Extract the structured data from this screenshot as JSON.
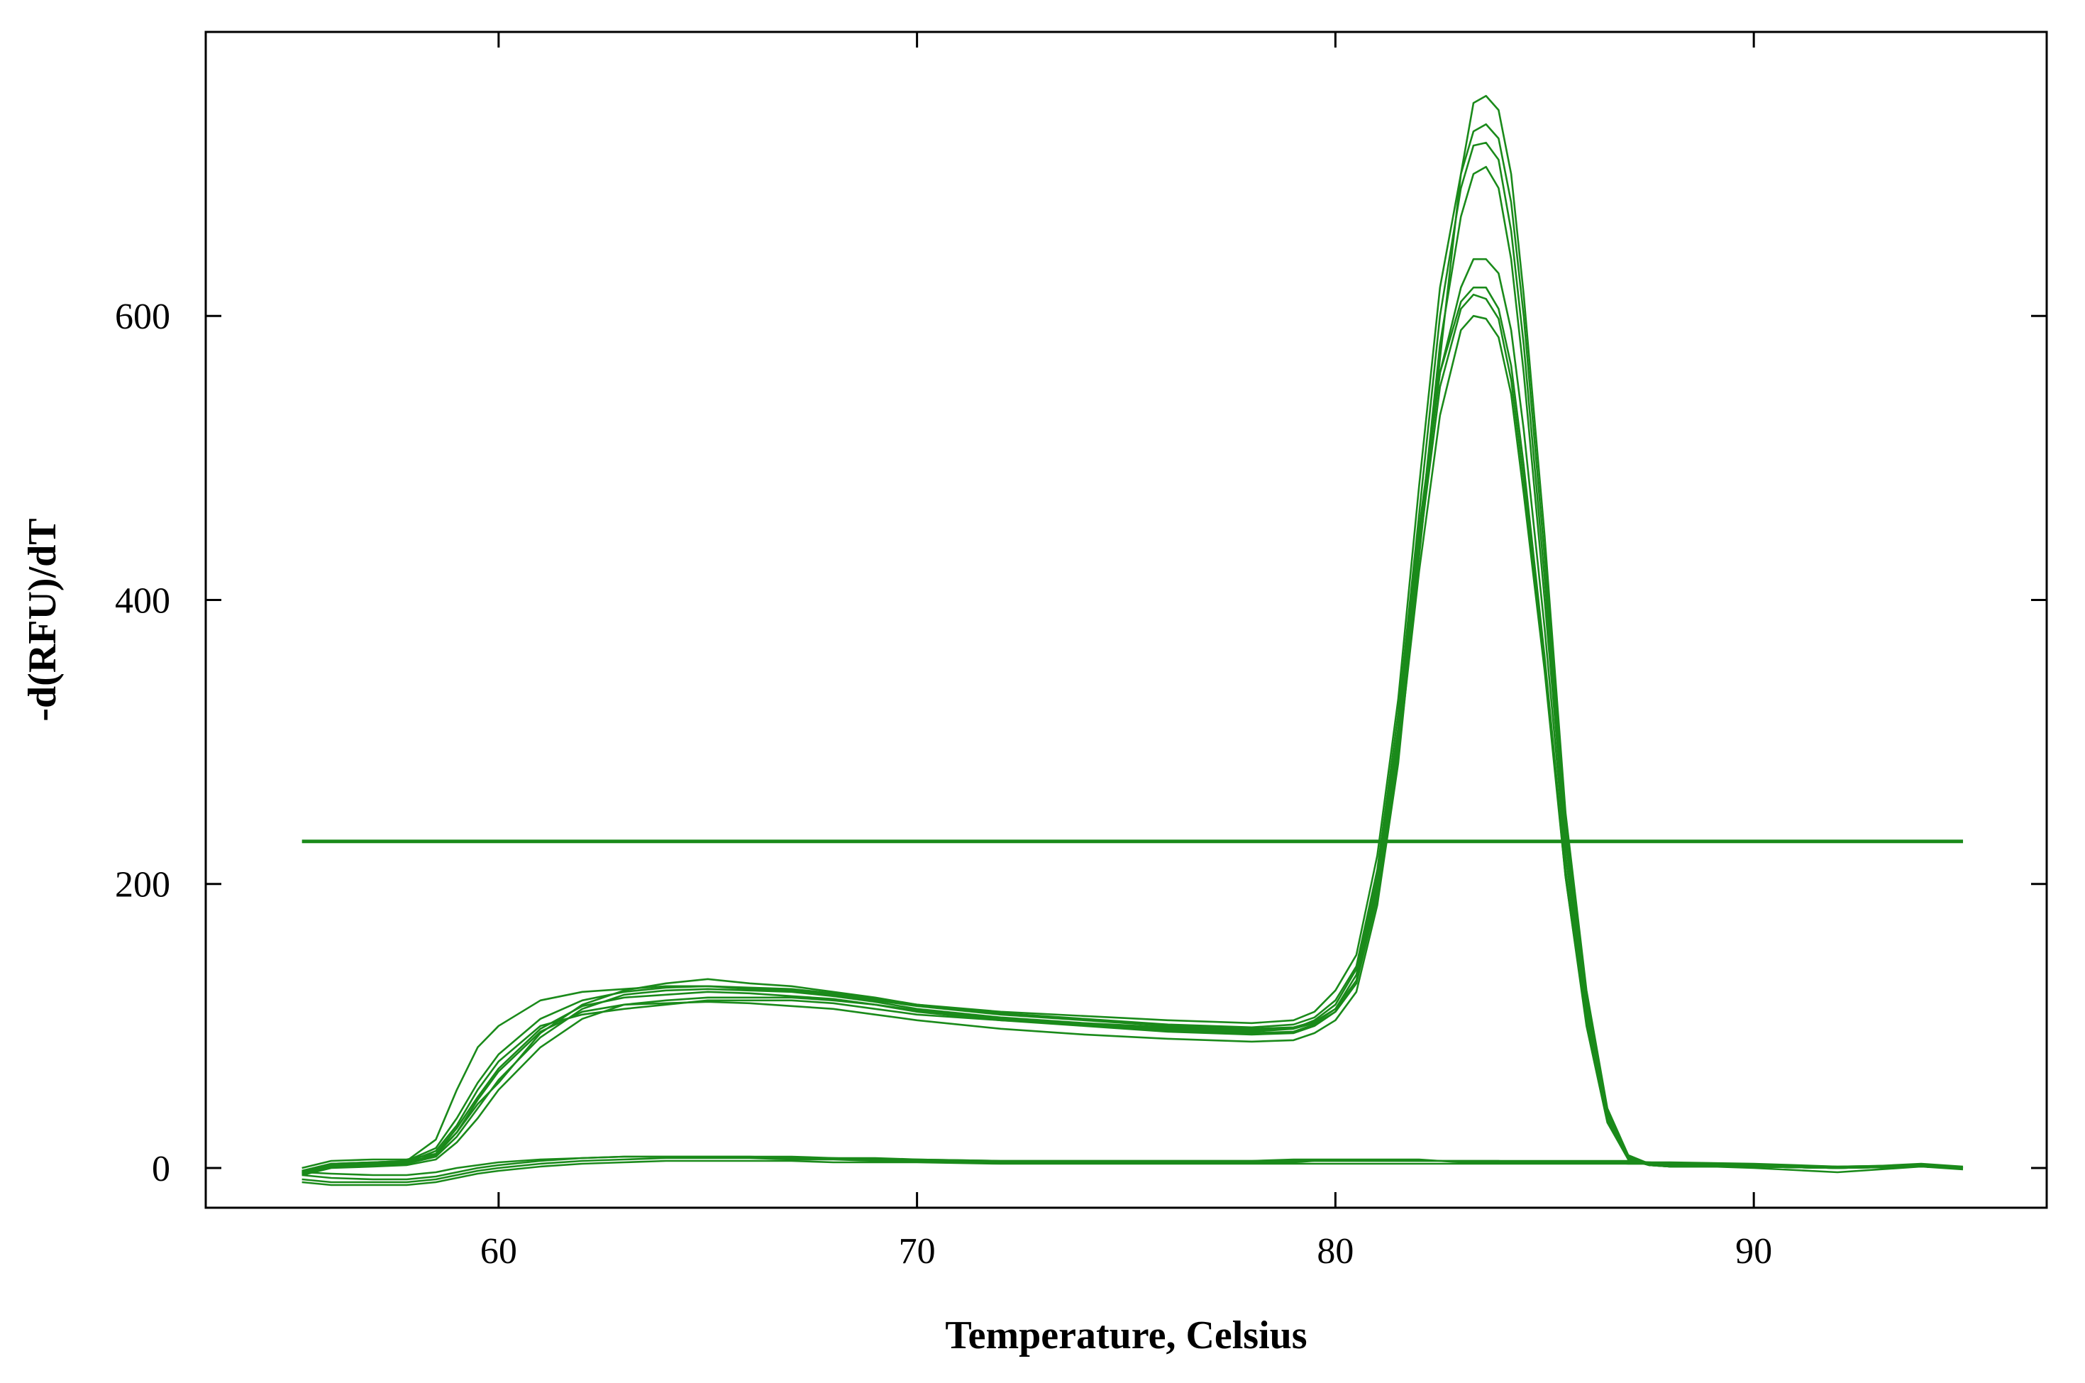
{
  "chart_data": {
    "type": "line",
    "title": "",
    "xlabel": "Temperature, Celsius",
    "ylabel": "-d(RFU)/dT",
    "xlim": [
      53,
      97
    ],
    "ylim": [
      -28,
      800
    ],
    "xticks": [
      60,
      70,
      80,
      90
    ],
    "xtick_labels": [
      "60",
      "70",
      "80",
      "90"
    ],
    "yticks": [
      0,
      200,
      400,
      600
    ],
    "ytick_labels": [
      "0",
      "200",
      "400",
      "600"
    ],
    "grid": false,
    "legend": "none",
    "line_color": "#1a8a1a",
    "threshold": {
      "value": 230,
      "x_start": 55.3,
      "x_end": 95
    },
    "series": [
      {
        "x": [
          55.3,
          56,
          57,
          57.8,
          58.5,
          59,
          59.5,
          60,
          61,
          62,
          63,
          64,
          65,
          66,
          67,
          68,
          69,
          70,
          72,
          74,
          76,
          78,
          79,
          79.5,
          80,
          80.5,
          81,
          81.5,
          82,
          82.5,
          83,
          83.3,
          83.6,
          83.9,
          84.2,
          84.5,
          85,
          85.5,
          86,
          86.5,
          87,
          87.5,
          88,
          90,
          92,
          94,
          95
        ],
        "y": [
          0,
          5,
          6,
          6,
          10,
          25,
          45,
          60,
          95,
          115,
          125,
          130,
          133,
          130,
          128,
          124,
          120,
          115,
          110,
          107,
          104,
          102,
          104,
          110,
          125,
          150,
          220,
          330,
          480,
          620,
          700,
          730,
          735,
          725,
          680,
          600,
          430,
          240,
          120,
          40,
          8,
          3,
          2,
          1,
          0,
          1,
          0
        ]
      },
      {
        "x": [
          55.3,
          56,
          57,
          57.8,
          58.5,
          59,
          59.5,
          60,
          61,
          62,
          63,
          64,
          65,
          66,
          67,
          68,
          69,
          70,
          72,
          74,
          76,
          78,
          79,
          79.5,
          80,
          80.5,
          81,
          81.5,
          82,
          82.5,
          83,
          83.3,
          83.6,
          83.9,
          84.2,
          84.5,
          85,
          85.5,
          86,
          86.5,
          87,
          87.5,
          88,
          90,
          92,
          94,
          95
        ],
        "y": [
          -3,
          2,
          3,
          4,
          12,
          30,
          55,
          75,
          100,
          108,
          112,
          115,
          118,
          118,
          118,
          116,
          112,
          108,
          104,
          101,
          98,
          96,
          98,
          104,
          115,
          140,
          205,
          310,
          450,
          560,
          620,
          640,
          640,
          630,
          590,
          520,
          380,
          220,
          110,
          35,
          7,
          2,
          1,
          1,
          0,
          1,
          0
        ]
      },
      {
        "x": [
          55.3,
          56,
          57,
          57.8,
          58.5,
          59,
          59.5,
          60,
          61,
          62,
          63,
          64,
          65,
          66,
          67,
          68,
          69,
          70,
          72,
          74,
          76,
          78,
          79,
          79.5,
          80,
          80.5,
          81,
          81.5,
          82,
          82.5,
          83,
          83.3,
          83.6,
          83.9,
          84.2,
          84.5,
          85,
          85.5,
          86,
          86.5,
          87,
          87.5,
          88,
          90,
          92,
          94,
          95
        ],
        "y": [
          -2,
          3,
          4,
          5,
          20,
          55,
          85,
          100,
          118,
          124,
          126,
          128,
          128,
          126,
          125,
          122,
          118,
          114,
          108,
          104,
          100,
          98,
          99,
          103,
          112,
          132,
          195,
          300,
          440,
          580,
          670,
          700,
          705,
          690,
          640,
          560,
          400,
          230,
          115,
          38,
          8,
          3,
          2,
          1,
          0,
          1,
          0
        ]
      },
      {
        "x": [
          55.3,
          56,
          57,
          57.8,
          58.5,
          59,
          59.5,
          60,
          61,
          62,
          63,
          64,
          65,
          66,
          67,
          68,
          69,
          70,
          72,
          74,
          76,
          78,
          79,
          79.5,
          80,
          80.5,
          81,
          81.5,
          82,
          82.5,
          83,
          83.3,
          83.6,
          83.9,
          84.2,
          84.5,
          85,
          85.5,
          86,
          86.5,
          87,
          87.5,
          88,
          90,
          92,
          94,
          95
        ],
        "y": [
          -5,
          0,
          1,
          2,
          6,
          18,
          35,
          55,
          85,
          105,
          115,
          118,
          120,
          120,
          120,
          118,
          115,
          110,
          104,
          100,
          96,
          94,
          95,
          100,
          110,
          130,
          190,
          290,
          420,
          530,
          590,
          600,
          598,
          585,
          545,
          475,
          350,
          205,
          100,
          32,
          6,
          2,
          1,
          1,
          0,
          1,
          0
        ]
      },
      {
        "x": [
          55.3,
          56,
          57,
          57.8,
          58.5,
          59,
          59.5,
          60,
          61,
          62,
          63,
          64,
          65,
          66,
          67,
          68,
          69,
          70,
          72,
          74,
          76,
          78,
          79,
          79.5,
          80,
          80.5,
          81,
          81.5,
          82,
          82.5,
          83,
          83.3,
          83.6,
          83.9,
          84.2,
          84.5,
          85,
          85.5,
          86,
          86.5,
          87,
          87.5,
          88,
          90,
          92,
          94,
          95
        ],
        "y": [
          -4,
          1,
          2,
          3,
          8,
          22,
          42,
          62,
          92,
          112,
          122,
          125,
          126,
          125,
          124,
          121,
          117,
          112,
          106,
          102,
          99,
          97,
          98,
          102,
          112,
          136,
          200,
          305,
          445,
          560,
          610,
          620,
          620,
          605,
          565,
          495,
          360,
          210,
          105,
          34,
          7,
          2,
          1,
          1,
          0,
          1,
          0
        ]
      },
      {
        "x": [
          55.3,
          56,
          57,
          57.8,
          58.5,
          59,
          59.5,
          60,
          61,
          62,
          63,
          64,
          65,
          66,
          67,
          68,
          69,
          70,
          72,
          74,
          76,
          78,
          79,
          79.5,
          80,
          80.5,
          81,
          81.5,
          82,
          82.5,
          83,
          83.3,
          83.6,
          83.9,
          84.2,
          84.5,
          85,
          85.5,
          86,
          86.5,
          87,
          87.5,
          88,
          90,
          92,
          94,
          95
        ],
        "y": [
          -3,
          2,
          3,
          4,
          9,
          25,
          48,
          68,
          96,
          110,
          115,
          116,
          117,
          116,
          114,
          112,
          108,
          104,
          98,
          94,
          91,
          89,
          90,
          95,
          104,
          124,
          185,
          285,
          430,
          570,
          700,
          750,
          755,
          745,
          700,
          615,
          445,
          250,
          125,
          42,
          9,
          3,
          2,
          1,
          0,
          1,
          0
        ]
      },
      {
        "x": [
          55.3,
          56,
          57,
          57.8,
          58.5,
          59,
          59.5,
          60,
          61,
          62,
          63,
          64,
          65,
          66,
          67,
          68,
          69,
          70,
          72,
          74,
          76,
          78,
          79,
          79.5,
          80,
          80.5,
          81,
          81.5,
          82,
          82.5,
          83,
          83.3,
          83.6,
          83.9,
          84.2,
          84.5,
          85,
          85.5,
          86,
          86.5,
          87,
          87.5,
          88,
          90,
          92,
          94,
          95
        ],
        "y": [
          -2,
          3,
          4,
          5,
          14,
          35,
          60,
          80,
          105,
          118,
          124,
          127,
          128,
          127,
          126,
          123,
          119,
          115,
          109,
          105,
          101,
          99,
          101,
          106,
          118,
          142,
          210,
          320,
          460,
          600,
          690,
          720,
          722,
          710,
          660,
          580,
          415,
          235,
          118,
          38,
          8,
          3,
          2,
          1,
          0,
          1,
          0
        ]
      },
      {
        "x": [
          55.3,
          56,
          57,
          57.8,
          58.5,
          59,
          59.5,
          60,
          61,
          62,
          63,
          64,
          65,
          66,
          67,
          68,
          69,
          70,
          72,
          74,
          76,
          78,
          79,
          79.5,
          80,
          80.5,
          81,
          81.5,
          82,
          82.5,
          83,
          83.3,
          83.6,
          83.9,
          84.2,
          84.5,
          85,
          85.5,
          86,
          86.5,
          87,
          87.5,
          88,
          90,
          92,
          94,
          95
        ],
        "y": [
          -4,
          1,
          2,
          3,
          10,
          28,
          50,
          70,
          98,
          114,
          120,
          122,
          124,
          123,
          121,
          119,
          115,
          111,
          105,
          101,
          97,
          95,
          96,
          101,
          110,
          130,
          195,
          295,
          435,
          550,
          605,
          615,
          612,
          598,
          555,
          485,
          355,
          205,
          102,
          33,
          6,
          2,
          1,
          1,
          0,
          1,
          0
        ]
      },
      {
        "x": [
          55.3,
          56,
          57,
          57.8,
          58.5,
          59,
          59.5,
          60,
          61,
          62,
          63,
          64,
          65,
          66,
          67,
          68,
          69,
          70,
          72,
          74,
          76,
          78,
          79,
          79.5,
          80,
          80.5,
          81,
          81.5,
          82,
          82.5,
          83,
          83.3,
          83.6,
          83.9,
          84.2,
          84.5,
          85,
          85.5,
          86,
          86.5,
          87,
          87.5,
          88,
          90,
          92,
          94,
          95
        ],
        "y": [
          -8,
          -10,
          -10,
          -10,
          -8,
          -5,
          -2,
          0,
          3,
          5,
          6,
          7,
          7,
          7,
          6,
          6,
          5,
          5,
          4,
          4,
          4,
          4,
          4,
          5,
          5,
          5,
          5,
          5,
          5,
          5,
          4,
          4,
          4,
          4,
          4,
          4,
          4,
          4,
          4,
          4,
          3,
          3,
          3,
          2,
          1,
          2,
          0
        ]
      },
      {
        "x": [
          55.3,
          56,
          57,
          57.8,
          58.5,
          59,
          59.5,
          60,
          61,
          62,
          63,
          64,
          65,
          66,
          67,
          68,
          69,
          70,
          72,
          74,
          76,
          78,
          79,
          79.5,
          80,
          80.5,
          81,
          81.5,
          82,
          82.5,
          83,
          83.3,
          83.6,
          83.9,
          84.2,
          84.5,
          85,
          85.5,
          86,
          86.5,
          87,
          87.5,
          88,
          90,
          92,
          94,
          95
        ],
        "y": [
          -5,
          -7,
          -8,
          -8,
          -6,
          -3,
          0,
          2,
          5,
          7,
          8,
          8,
          8,
          8,
          7,
          7,
          6,
          6,
          5,
          5,
          5,
          5,
          5,
          5,
          5,
          5,
          5,
          5,
          5,
          5,
          5,
          5,
          5,
          5,
          4,
          4,
          4,
          4,
          4,
          4,
          4,
          4,
          3,
          2,
          0,
          3,
          1
        ]
      },
      {
        "x": [
          55.3,
          56,
          57,
          57.8,
          58.5,
          59,
          59.5,
          60,
          61,
          62,
          63,
          64,
          65,
          66,
          67,
          68,
          69,
          70,
          72,
          74,
          76,
          78,
          79,
          79.5,
          80,
          80.5,
          81,
          81.5,
          82,
          82.5,
          83,
          83.3,
          83.6,
          83.9,
          84.2,
          84.5,
          85,
          85.5,
          86,
          86.5,
          87,
          87.5,
          88,
          90,
          92,
          94,
          95
        ],
        "y": [
          -10,
          -12,
          -12,
          -12,
          -10,
          -7,
          -4,
          -2,
          1,
          3,
          4,
          5,
          5,
          5,
          5,
          4,
          4,
          4,
          3,
          3,
          3,
          3,
          3,
          3,
          3,
          3,
          3,
          3,
          3,
          3,
          3,
          3,
          3,
          3,
          3,
          3,
          3,
          3,
          3,
          3,
          3,
          3,
          2,
          0,
          -3,
          1,
          -1
        ]
      },
      {
        "x": [
          55.3,
          56,
          57,
          57.8,
          58.5,
          59,
          59.5,
          60,
          61,
          62,
          63,
          64,
          65,
          66,
          67,
          68,
          69,
          70,
          72,
          74,
          76,
          78,
          79,
          79.5,
          80,
          80.5,
          81,
          81.5,
          82,
          82.5,
          83,
          83.3,
          83.6,
          83.9,
          84.2,
          84.5,
          85,
          85.5,
          86,
          86.5,
          87,
          87.5,
          88,
          90,
          92,
          94,
          95
        ],
        "y": [
          -3,
          -4,
          -5,
          -5,
          -3,
          0,
          2,
          4,
          6,
          7,
          8,
          8,
          8,
          8,
          8,
          7,
          7,
          6,
          5,
          5,
          5,
          5,
          6,
          6,
          6,
          6,
          6,
          6,
          6,
          5,
          5,
          5,
          5,
          5,
          5,
          5,
          5,
          5,
          5,
          5,
          5,
          4,
          4,
          3,
          1,
          2,
          0
        ]
      }
    ]
  }
}
